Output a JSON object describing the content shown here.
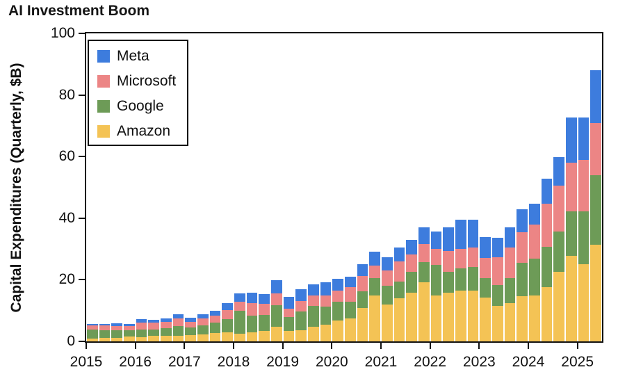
{
  "title": "AI Investment Boom",
  "chart_data": {
    "type": "bar",
    "stacked": true,
    "title": "AI Investment Boom",
    "xlabel": "",
    "ylabel": "Capital Expenditures (Quarterly, $B)",
    "ylim": [
      0,
      100
    ],
    "yticks": [
      0,
      20,
      40,
      60,
      80,
      100
    ],
    "grid": false,
    "legend_position": "upper left",
    "x": [
      "2015Q1",
      "2015Q2",
      "2015Q3",
      "2015Q4",
      "2016Q1",
      "2016Q2",
      "2016Q3",
      "2016Q4",
      "2017Q1",
      "2017Q2",
      "2017Q3",
      "2017Q4",
      "2018Q1",
      "2018Q2",
      "2018Q3",
      "2018Q4",
      "2019Q1",
      "2019Q2",
      "2019Q3",
      "2019Q4",
      "2020Q1",
      "2020Q2",
      "2020Q3",
      "2020Q4",
      "2021Q1",
      "2021Q2",
      "2021Q3",
      "2021Q4",
      "2022Q1",
      "2022Q2",
      "2022Q3",
      "2022Q4",
      "2023Q1",
      "2023Q2",
      "2023Q3",
      "2023Q4",
      "2024Q1",
      "2024Q2",
      "2024Q3",
      "2024Q4",
      "2025Q1",
      "2025Q2"
    ],
    "year_ticks": [
      "2015",
      "2016",
      "2017",
      "2018",
      "2019",
      "2020",
      "2021",
      "2022",
      "2023",
      "2024",
      "2025"
    ],
    "legend": [
      {
        "name": "Meta",
        "color": "#3d7cdd"
      },
      {
        "name": "Microsoft",
        "color": "#ec8585"
      },
      {
        "name": "Google",
        "color": "#6d9b57"
      },
      {
        "name": "Amazon",
        "color": "#f4c355"
      }
    ],
    "series": [
      {
        "name": "Amazon",
        "color": "#f4c355",
        "values": [
          0.87,
          1.02,
          1.19,
          1.52,
          1.44,
          1.71,
          1.71,
          1.87,
          2.12,
          2.28,
          2.66,
          2.94,
          2.54,
          2.85,
          3.35,
          4.74,
          3.29,
          3.56,
          4.7,
          5.31,
          6.8,
          7.46,
          10.9,
          14.98,
          12.08,
          14.0,
          15.7,
          19.27,
          14.95,
          15.72,
          16.38,
          16.59,
          14.21,
          11.46,
          12.48,
          14.59,
          14.93,
          17.62,
          22.62,
          27.83,
          25.02,
          31.4
        ]
      },
      {
        "name": "Google",
        "color": "#6d9b57",
        "values": [
          2.93,
          2.52,
          2.38,
          2.1,
          2.35,
          2.12,
          2.55,
          3.08,
          2.48,
          2.81,
          3.5,
          4.31,
          7.3,
          5.48,
          5.28,
          7.08,
          4.64,
          6.13,
          6.73,
          6.05,
          5.99,
          5.39,
          5.41,
          5.48,
          5.94,
          5.5,
          6.82,
          6.38,
          9.79,
          6.83,
          7.28,
          7.6,
          6.29,
          6.89,
          8.06,
          11.02,
          12.01,
          13.19,
          13.06,
          14.28,
          17.2,
          22.45
        ]
      },
      {
        "name": "Microsoft",
        "color": "#ec8585",
        "values": [
          1.37,
          1.67,
          1.47,
          1.44,
          2.31,
          2.28,
          2.18,
          2.53,
          1.7,
          2.28,
          2.13,
          2.87,
          2.94,
          3.98,
          3.48,
          3.66,
          2.61,
          3.39,
          3.39,
          3.55,
          3.77,
          4.72,
          4.91,
          4.18,
          5.09,
          6.44,
          5.81,
          5.87,
          5.34,
          6.87,
          6.28,
          6.27,
          6.61,
          8.94,
          9.92,
          9.74,
          10.95,
          13.87,
          14.92,
          15.8,
          16.75,
          17.08
        ]
      },
      {
        "name": "Meta",
        "color": "#3d7cdd",
        "values": [
          0.5,
          0.55,
          0.78,
          0.69,
          1.13,
          0.99,
          1.1,
          1.27,
          1.27,
          1.44,
          1.76,
          2.26,
          2.81,
          3.46,
          3.34,
          4.37,
          3.82,
          3.83,
          3.67,
          4.31,
          3.68,
          3.42,
          3.9,
          4.42,
          4.3,
          4.49,
          4.54,
          5.41,
          5.55,
          7.57,
          9.52,
          9.04,
          6.82,
          6.35,
          6.54,
          7.59,
          6.72,
          8.17,
          9.21,
          14.84,
          13.69,
          17.01
        ]
      }
    ]
  }
}
